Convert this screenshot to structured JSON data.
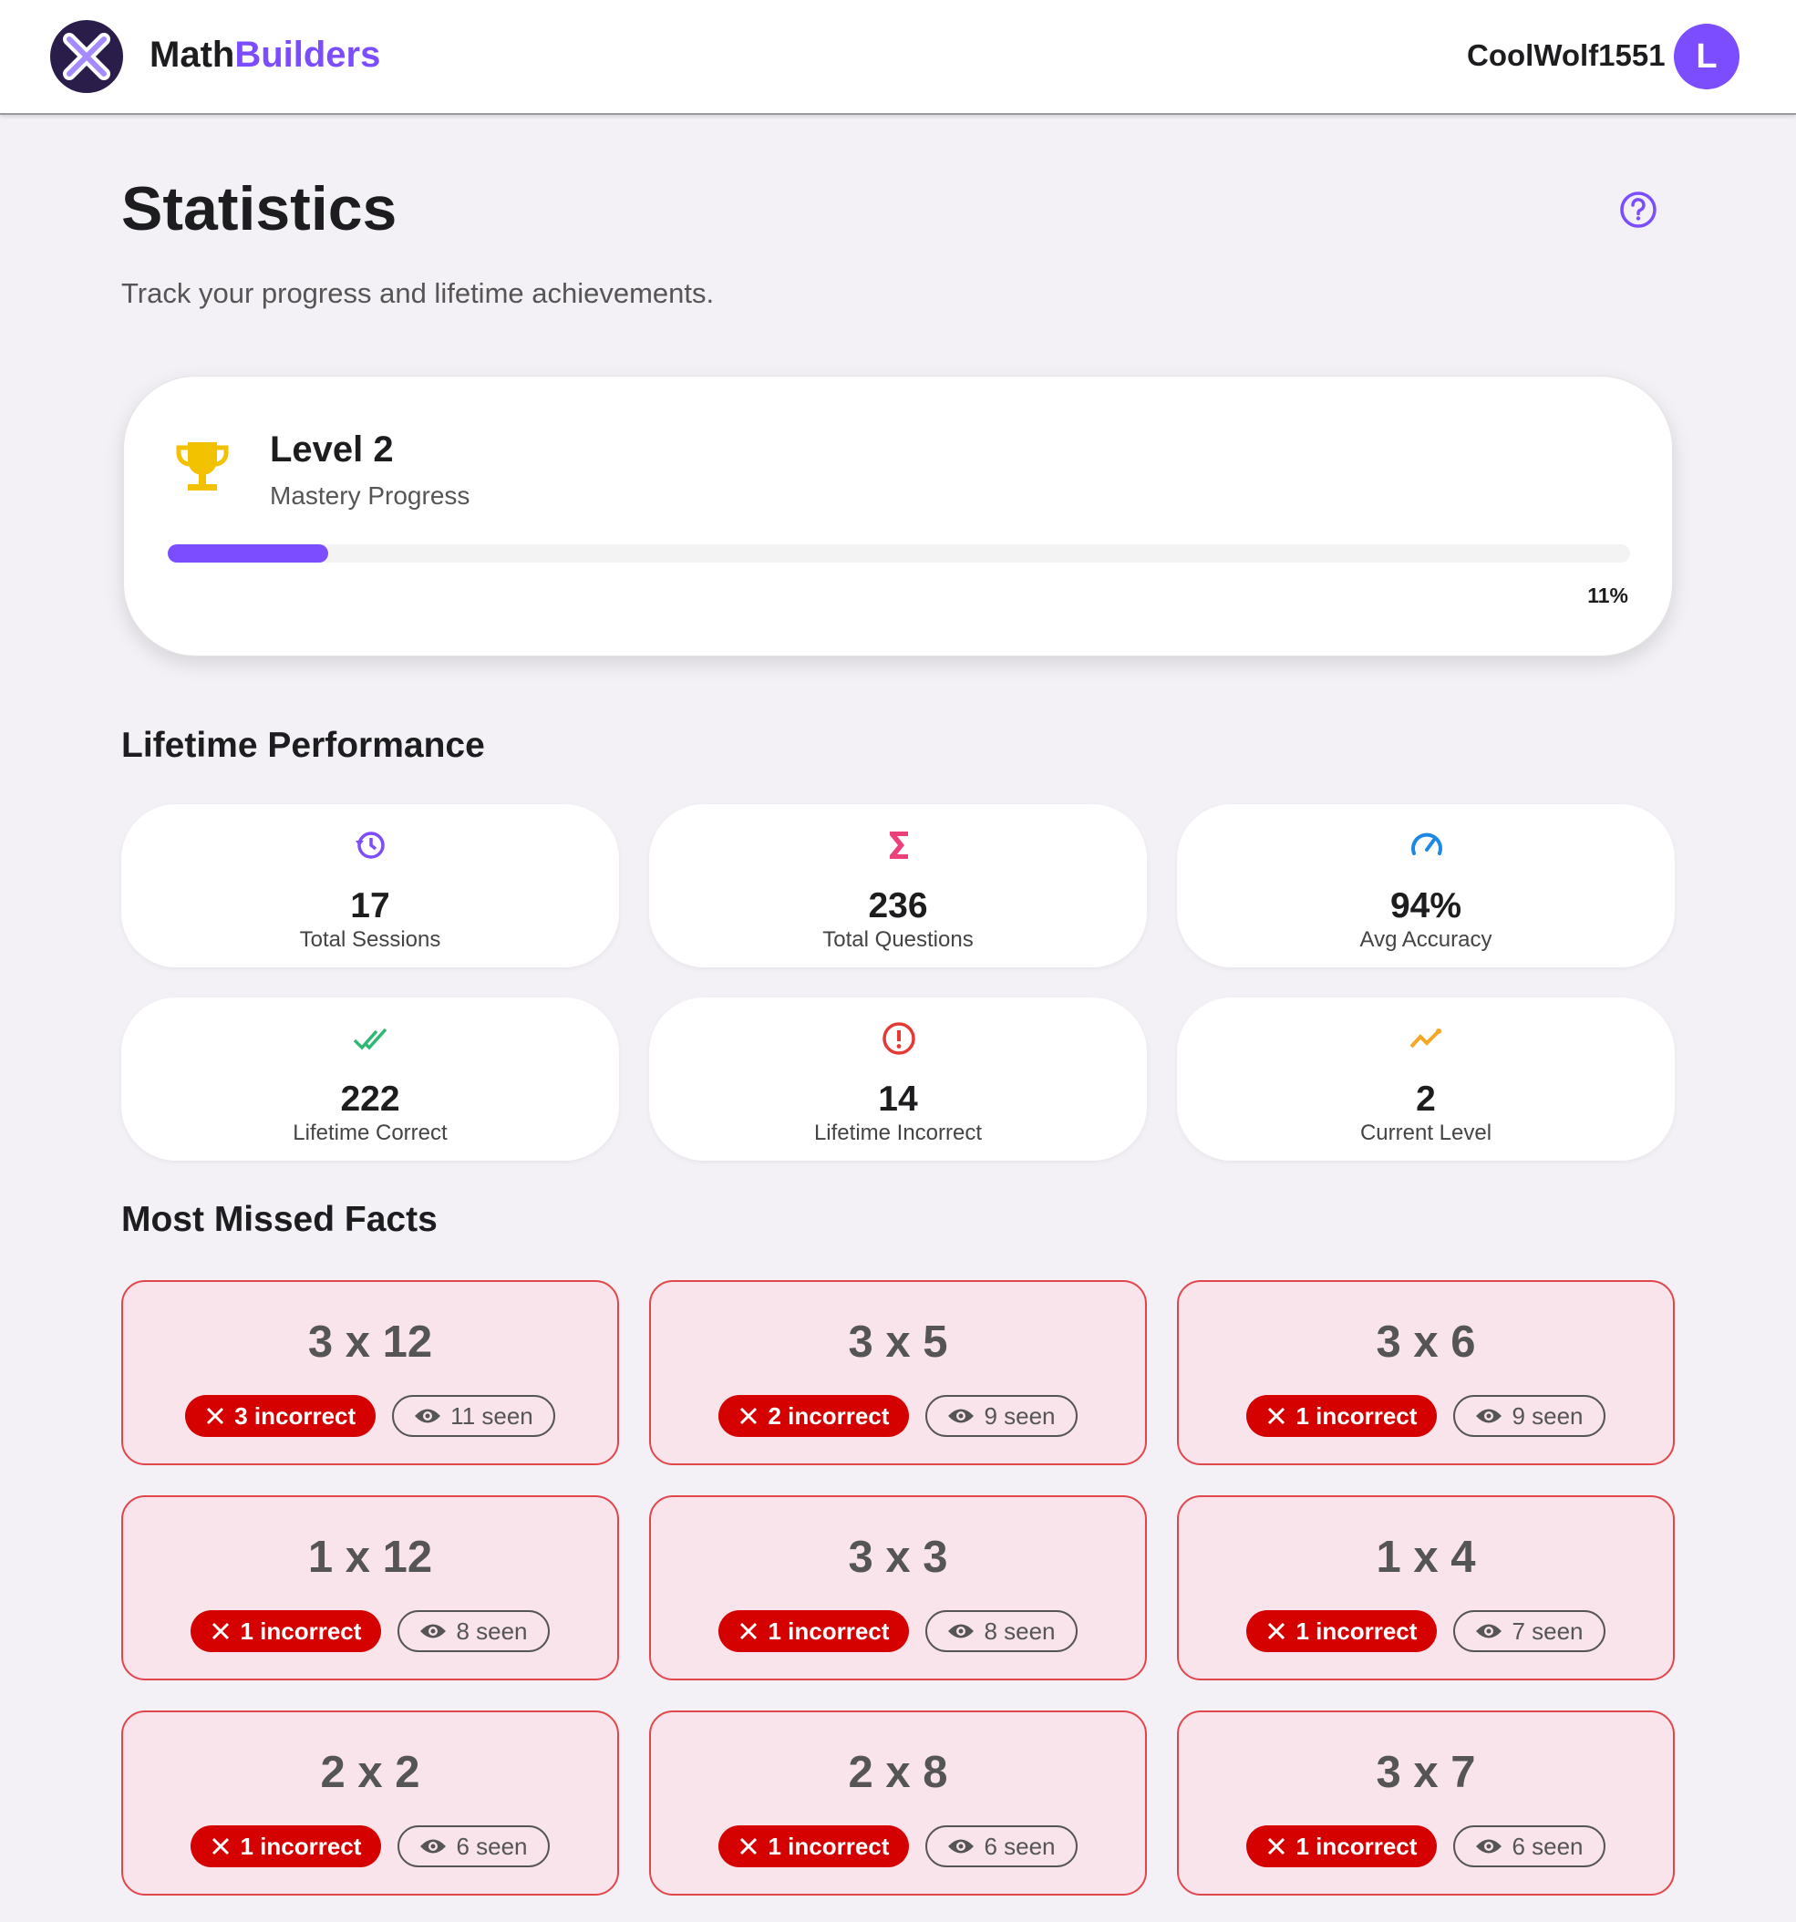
{
  "header": {
    "brand_first": "Math",
    "brand_second": "Builders",
    "username": "CoolWolf1551",
    "avatar": "L"
  },
  "page": {
    "title": "Statistics",
    "subtitle": "Track your progress and lifetime achievements."
  },
  "level": {
    "title": "Level 2",
    "subtitle": "Mastery Progress",
    "progress": {
      "value": 11,
      "label": "11%"
    }
  },
  "performance": {
    "title": "Lifetime Performance",
    "stats": [
      {
        "icon": "history",
        "color": "#7c4dff",
        "value": 17,
        "label": "Total Sessions"
      },
      {
        "icon": "sigma",
        "color": "#ec407a",
        "value": 236,
        "label": "Total Questions"
      },
      {
        "icon": "speed",
        "color": "#1e88e5",
        "value": "94%",
        "label": "Avg Accuracy"
      },
      {
        "icon": "check",
        "color": "#2eb872",
        "value": 222,
        "label": "Lifetime Correct"
      },
      {
        "icon": "error",
        "color": "#e53935",
        "value": 14,
        "label": "Lifetime Incorrect"
      },
      {
        "icon": "trend",
        "color": "#f5a623",
        "value": 2,
        "label": "Current Level"
      }
    ]
  },
  "missed": {
    "title": "Most Missed Facts",
    "facts": [
      {
        "fact": "3 x 12",
        "incorrect": "3 incorrect",
        "seen": "11 seen"
      },
      {
        "fact": "3 x 5",
        "incorrect": "2 incorrect",
        "seen": "9 seen"
      },
      {
        "fact": "3 x 6",
        "incorrect": "1 incorrect",
        "seen": "9 seen"
      },
      {
        "fact": "1 x 12",
        "incorrect": "1 incorrect",
        "seen": "8 seen"
      },
      {
        "fact": "3 x 3",
        "incorrect": "1 incorrect",
        "seen": "8 seen"
      },
      {
        "fact": "1 x 4",
        "incorrect": "1 incorrect",
        "seen": "7 seen"
      },
      {
        "fact": "2 x 2",
        "incorrect": "1 incorrect",
        "seen": "6 seen"
      },
      {
        "fact": "2 x 8",
        "incorrect": "1 incorrect",
        "seen": "6 seen"
      },
      {
        "fact": "3 x 7",
        "incorrect": "1 incorrect",
        "seen": "6 seen"
      }
    ]
  }
}
